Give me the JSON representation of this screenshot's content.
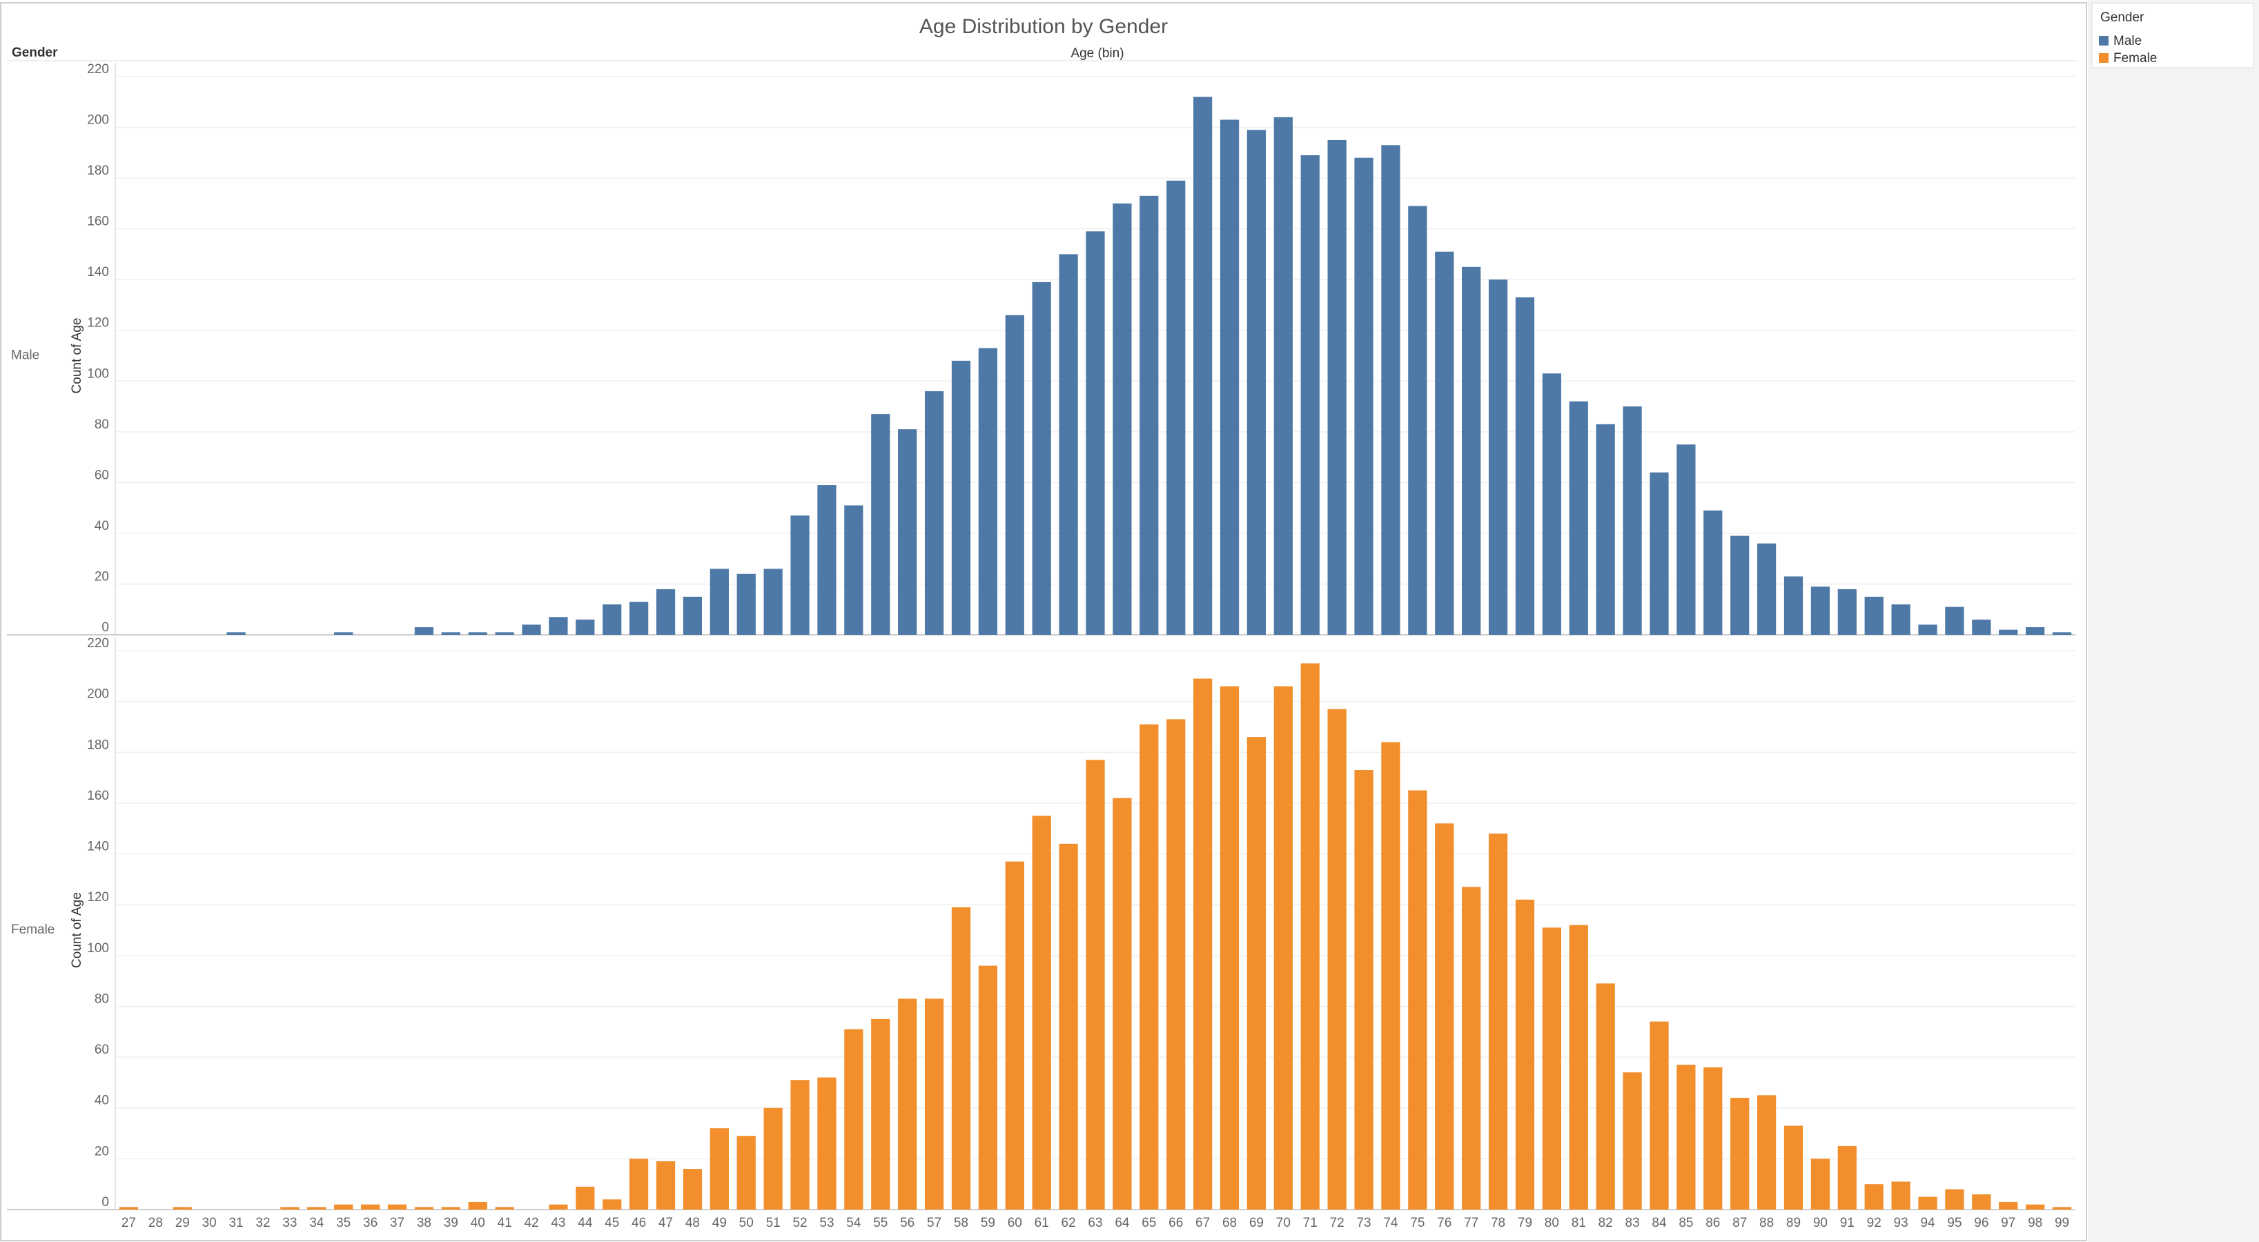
{
  "chart_data": {
    "type": "bar",
    "title": "Age Distribution by Gender",
    "row_header": "Gender",
    "x_label": "Age (bin)",
    "y_label": "Count of Age",
    "legend_title": "Gender",
    "categories": [
      "27",
      "28",
      "29",
      "30",
      "31",
      "32",
      "33",
      "34",
      "35",
      "36",
      "37",
      "38",
      "39",
      "40",
      "41",
      "42",
      "43",
      "44",
      "45",
      "46",
      "47",
      "48",
      "49",
      "50",
      "51",
      "52",
      "53",
      "54",
      "55",
      "56",
      "57",
      "58",
      "59",
      "60",
      "61",
      "62",
      "63",
      "64",
      "65",
      "66",
      "67",
      "68",
      "69",
      "70",
      "71",
      "72",
      "73",
      "74",
      "75",
      "76",
      "77",
      "78",
      "79",
      "80",
      "81",
      "82",
      "83",
      "84",
      "85",
      "86",
      "87",
      "88",
      "89",
      "90",
      "91",
      "92",
      "93",
      "94",
      "95",
      "96",
      "97",
      "98",
      "99"
    ],
    "series": [
      {
        "name": "Male",
        "color": "#4e79a7",
        "values": [
          0,
          0,
          0,
          0,
          1,
          0,
          0,
          0,
          1,
          0,
          0,
          3,
          1,
          1,
          1,
          4,
          7,
          6,
          12,
          13,
          18,
          15,
          26,
          24,
          26,
          47,
          59,
          51,
          87,
          81,
          96,
          108,
          113,
          126,
          139,
          150,
          159,
          170,
          173,
          179,
          212,
          203,
          199,
          204,
          189,
          195,
          188,
          193,
          169,
          151,
          145,
          140,
          133,
          103,
          92,
          83,
          90,
          64,
          75,
          49,
          39,
          36,
          23,
          19,
          18,
          15,
          12,
          4,
          11,
          6,
          2,
          3,
          1
        ]
      },
      {
        "name": "Female",
        "color": "#f28e2b",
        "values": [
          1,
          0,
          1,
          0,
          0,
          0,
          1,
          1,
          2,
          2,
          2,
          1,
          1,
          3,
          1,
          0,
          2,
          9,
          4,
          20,
          19,
          16,
          32,
          29,
          40,
          51,
          52,
          71,
          75,
          83,
          83,
          119,
          96,
          137,
          155,
          144,
          177,
          162,
          191,
          193,
          209,
          206,
          186,
          206,
          215,
          197,
          173,
          184,
          165,
          152,
          127,
          148,
          122,
          111,
          112,
          89,
          54,
          74,
          57,
          56,
          44,
          45,
          33,
          20,
          25,
          10,
          11,
          5,
          8,
          6,
          3,
          2,
          1
        ]
      }
    ],
    "ylim": [
      0,
      220
    ],
    "yticks": [
      0,
      20,
      40,
      60,
      80,
      100,
      120,
      140,
      160,
      180,
      200,
      220
    ],
    "grid": true
  }
}
